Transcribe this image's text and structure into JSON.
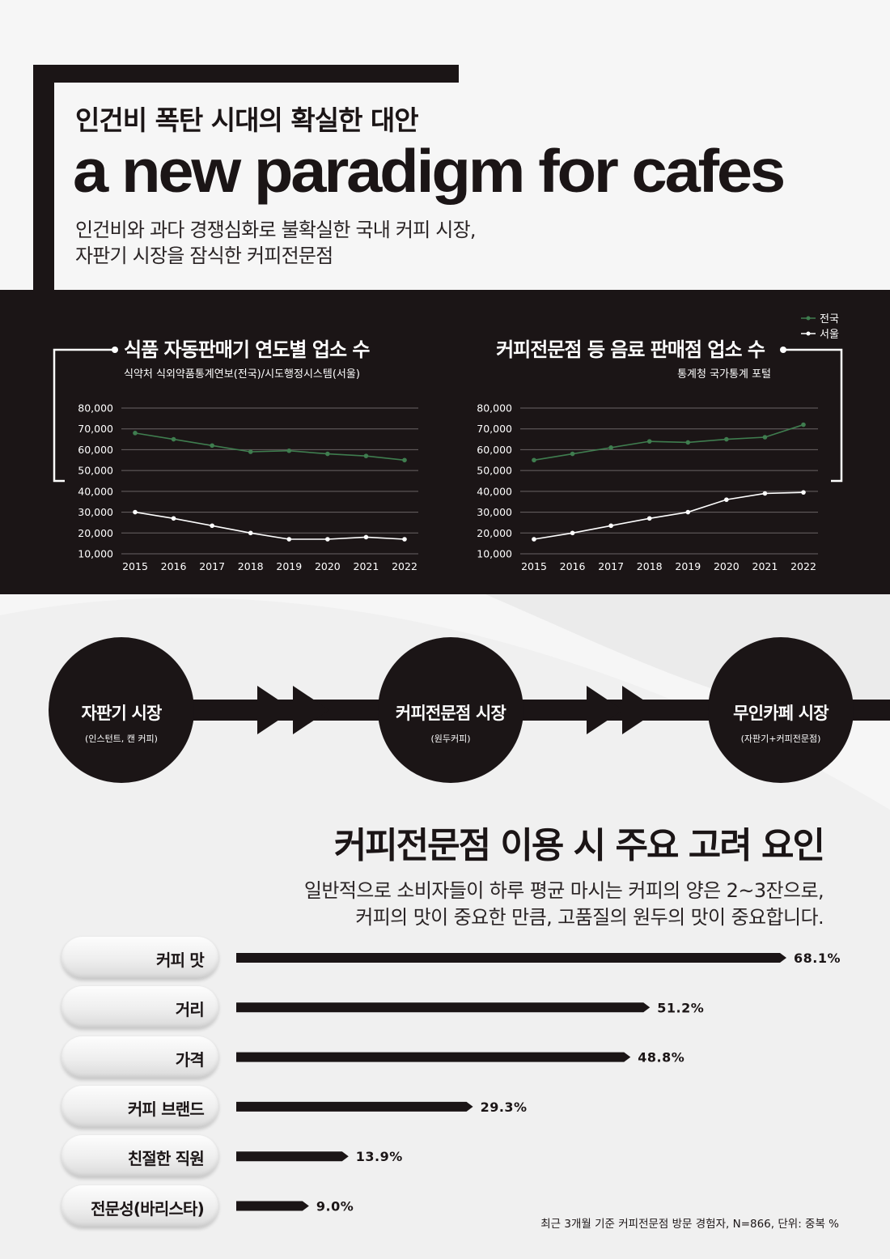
{
  "header": {
    "subtitle": "인건비 폭탄 시대의 확실한 대안",
    "title": "a new paradigm for cafes",
    "desc_line1": "인건비와 과다 경쟁심화로 불확실한 국내 커피 시장,",
    "desc_line2": "자판기 시장을 잠식한 커피전문점"
  },
  "colors": {
    "dark": "#1b1516",
    "national": "#3f7d4f",
    "seoul": "#ffffff",
    "grid": "#6a6465"
  },
  "chart_data": [
    {
      "type": "line",
      "title": "식품 자동판매기 연도별 업소 수",
      "subtitle": "식약처 식외약품통계연보(전국)/시도행정시스템(서울)",
      "x": [
        "2015",
        "2016",
        "2017",
        "2018",
        "2019",
        "2020",
        "2021",
        "2022"
      ],
      "ylim": [
        10000,
        80000
      ],
      "yticks": [
        "80,000",
        "70,000",
        "60,000",
        "50,000",
        "40,000",
        "30,000",
        "20,000",
        "10,000"
      ],
      "series": [
        {
          "name": "전국",
          "values": [
            68000,
            65000,
            62000,
            59000,
            59500,
            58000,
            57000,
            55000
          ]
        },
        {
          "name": "서울",
          "values": [
            30000,
            27000,
            23500,
            20000,
            17000,
            17000,
            18000,
            17000
          ]
        }
      ],
      "grid": true
    },
    {
      "type": "line",
      "title": "커피전문점 등 음료 판매점 업소 수",
      "subtitle": "통계청 국가통계 포털",
      "x": [
        "2015",
        "2016",
        "2017",
        "2018",
        "2019",
        "2020",
        "2021",
        "2022"
      ],
      "ylim": [
        10000,
        80000
      ],
      "yticks": [
        "80,000",
        "70,000",
        "60,000",
        "50,000",
        "40,000",
        "30,000",
        "20,000",
        "10,000"
      ],
      "series": [
        {
          "name": "전국",
          "values": [
            55000,
            58000,
            61000,
            64000,
            63500,
            65000,
            66000,
            72000
          ]
        },
        {
          "name": "서울",
          "values": [
            17000,
            20000,
            23500,
            27000,
            30000,
            36000,
            39000,
            39500
          ]
        }
      ],
      "legend": "top-right",
      "grid": true
    },
    {
      "type": "bar",
      "title": "커피전문점 이용 시 주요 고려 요인",
      "categories": [
        "커피 맛",
        "거리",
        "가격",
        "커피 브랜드",
        "친절한 직원",
        "전문성(바리스타)"
      ],
      "values": [
        68.1,
        51.2,
        48.8,
        29.3,
        13.9,
        9.0
      ],
      "value_labels": [
        "68.1%",
        "51.2%",
        "48.8%",
        "29.3%",
        "13.9%",
        "9.0%"
      ],
      "unit": "%"
    }
  ],
  "flow": {
    "steps": [
      {
        "label": "자판기 시장",
        "sub": "(인스턴트, 캔 커피)"
      },
      {
        "label": "커피전문점 시장",
        "sub": "(원두커피)"
      },
      {
        "label": "무인카페 시장",
        "sub": "(자판기+커피전문점)"
      }
    ]
  },
  "considerations": {
    "title": "커피전문점 이용 시 주요 고려 요인",
    "desc_line1": "일반적으로 소비자들이 하루 평균 마시는 커피의 양은 2~3잔으로,",
    "desc_line2": "커피의 맛이 중요한 만큼, 고품질의 원두의 맛이 중요합니다.",
    "footnote": "최근 3개월 기준 커피전문점 방문 경험자, N=866, 단위: 중복 %"
  }
}
